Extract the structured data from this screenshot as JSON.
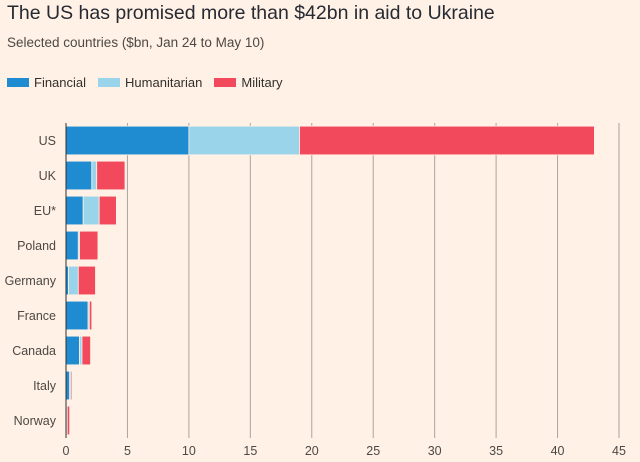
{
  "title": "The US has promised more than $42bn in aid to Ukraine",
  "subtitle": "Selected countries ($bn, Jan 24 to May 10)",
  "chart_data": {
    "type": "bar",
    "orientation": "horizontal",
    "stacked": true,
    "categories": [
      "US",
      "UK",
      "EU*",
      "Poland",
      "Germany",
      "France",
      "Canada",
      "Italy",
      "Norway"
    ],
    "series": [
      {
        "name": "Financial",
        "color": "#1f8bd1",
        "values": [
          10.0,
          2.1,
          1.4,
          1.0,
          0.2,
          1.8,
          1.1,
          0.3,
          0.0
        ]
      },
      {
        "name": "Humanitarian",
        "color": "#99d4eb",
        "values": [
          9.0,
          0.4,
          1.3,
          0.1,
          0.8,
          0.1,
          0.2,
          0.1,
          0.1
        ]
      },
      {
        "name": "Military",
        "color": "#f24a5c",
        "values": [
          24.0,
          2.3,
          1.4,
          1.5,
          1.4,
          0.2,
          0.7,
          0.1,
          0.2
        ]
      }
    ],
    "xlabel": "",
    "ylabel": "",
    "xlim": [
      0,
      45
    ],
    "xticks": [
      0,
      5,
      10,
      15,
      20,
      25,
      30,
      35,
      40,
      45
    ],
    "grid": true,
    "legend_position": "top-left"
  }
}
